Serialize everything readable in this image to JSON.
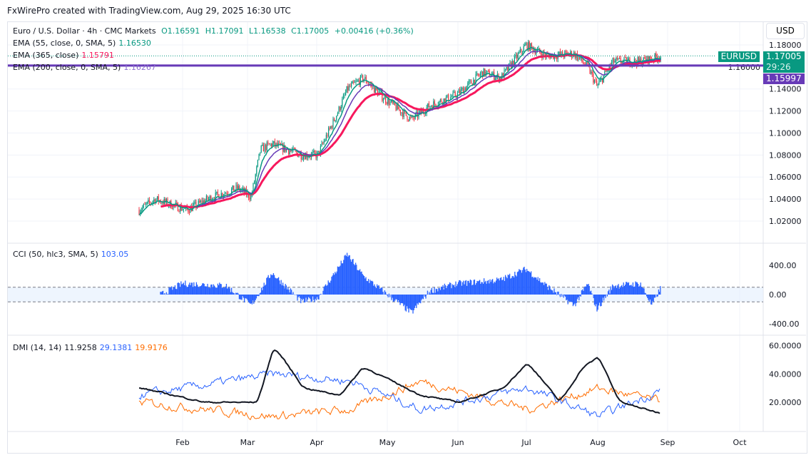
{
  "credit": "FxWirePro created with TradingView.com, Aug 29, 2025 16:30 UTC",
  "legend": {
    "symbol": "Euro / U.S. Dollar · 4h · CMC Markets",
    "o": "O1.16591",
    "h": "H1.17091",
    "l": "L1.16538",
    "c": "C1.17005",
    "chg": "+0.00416 (+0.36%)",
    "ema55": "EMA (55, close, 0, SMA, 5)",
    "ema55_val": "1.16530",
    "ema365": "EMA (365, close)",
    "ema365_val": "1.15791",
    "ema200": "EMA (200, close, 0, SMA, 5)",
    "ema200_val": "1.16267"
  },
  "cci_legend": {
    "label": "CCI (50, hlc3, SMA, 5)",
    "val": "103.05"
  },
  "dmi_legend": {
    "label": "DMI (14, 14)",
    "adx": "11.9258",
    "plus": "29.1381",
    "minus": "19.9176"
  },
  "currency_button": "USD",
  "tags": {
    "symbol": "EURUSD",
    "price": "1.17005",
    "countdown": "29:26",
    "hline": "1.15997"
  },
  "colors": {
    "up": "#089981",
    "down": "#f23645",
    "ema55": "#089981",
    "ema200": "#673ab7",
    "ema365": "#f7185d",
    "cci": "#2962ff",
    "adx": "#131722",
    "plus": "#2962ff",
    "minus": "#ff6d00",
    "hline": "#673ab7"
  },
  "chart_data": [
    {
      "type": "candlestick",
      "title": "Euro / U.S. Dollar · 4h · CMC Markets",
      "price_ticks": [
        "1.02000",
        "1.04000",
        "1.06000",
        "1.08000",
        "1.10000",
        "1.12000",
        "1.14000",
        "1.16000",
        "1.18000"
      ],
      "ylim": [
        1.005,
        1.19
      ],
      "horizontal_line": 1.15997,
      "time_ticks": [
        "Feb",
        "Mar",
        "Apr",
        "May",
        "Jun",
        "Jul",
        "Aug",
        "Sep",
        "Oct"
      ],
      "close_approx": [
        [
          "2025-01-13",
          1.03
        ],
        [
          "2025-01-20",
          1.04
        ],
        [
          "2025-01-27",
          1.035
        ],
        [
          "2025-02-03",
          1.03
        ],
        [
          "2025-02-12",
          1.04
        ],
        [
          "2025-02-25",
          1.05
        ],
        [
          "2025-03-03",
          1.042
        ],
        [
          "2025-03-07",
          1.085
        ],
        [
          "2025-03-12",
          1.09
        ],
        [
          "2025-03-25",
          1.08
        ],
        [
          "2025-04-01",
          1.08
        ],
        [
          "2025-04-10",
          1.12
        ],
        [
          "2025-04-14",
          1.14
        ],
        [
          "2025-04-21",
          1.15
        ],
        [
          "2025-04-28",
          1.135
        ],
        [
          "2025-05-12",
          1.112
        ],
        [
          "2025-05-20",
          1.125
        ],
        [
          "2025-06-01",
          1.135
        ],
        [
          "2025-06-12",
          1.155
        ],
        [
          "2025-06-20",
          1.15
        ],
        [
          "2025-07-01",
          1.18
        ],
        [
          "2025-07-10",
          1.17
        ],
        [
          "2025-07-22",
          1.172
        ],
        [
          "2025-07-28",
          1.16
        ],
        [
          "2025-08-01",
          1.142
        ],
        [
          "2025-08-08",
          1.165
        ],
        [
          "2025-08-20",
          1.165
        ],
        [
          "2025-08-29",
          1.17
        ]
      ]
    },
    {
      "type": "histogram",
      "title": "CCI (50, hlc3, SMA, 5)",
      "ticks": [
        "400.00",
        "0.00",
        "-400.00"
      ],
      "bands": [
        100,
        -100
      ],
      "values_approx": [
        [
          "2025-01-13",
          -150
        ],
        [
          "2025-02-01",
          150
        ],
        [
          "2025-02-20",
          120
        ],
        [
          "2025-03-03",
          -150
        ],
        [
          "2025-03-12",
          300
        ],
        [
          "2025-03-25",
          -100
        ],
        [
          "2025-04-01",
          -50
        ],
        [
          "2025-04-14",
          550
        ],
        [
          "2025-04-21",
          250
        ],
        [
          "2025-05-12",
          -250
        ],
        [
          "2025-05-20",
          50
        ],
        [
          "2025-06-01",
          150
        ],
        [
          "2025-06-20",
          200
        ],
        [
          "2025-07-01",
          350
        ],
        [
          "2025-07-10",
          120
        ],
        [
          "2025-07-22",
          -150
        ],
        [
          "2025-07-28",
          150
        ],
        [
          "2025-08-01",
          -200
        ],
        [
          "2025-08-08",
          120
        ],
        [
          "2025-08-20",
          150
        ],
        [
          "2025-08-25",
          -150
        ],
        [
          "2025-08-29",
          103.05
        ]
      ]
    },
    {
      "type": "line",
      "title": "DMI (14, 14)",
      "ticks": [
        "60.0000",
        "40.0000",
        "20.0000"
      ],
      "series": [
        {
          "name": "ADX",
          "values_approx": [
            [
              "2025-01-13",
              30
            ],
            [
              "2025-02-10",
              20
            ],
            [
              "2025-03-05",
              20
            ],
            [
              "2025-03-12",
              60
            ],
            [
              "2025-03-25",
              30
            ],
            [
              "2025-04-10",
              25
            ],
            [
              "2025-04-20",
              45
            ],
            [
              "2025-05-15",
              25
            ],
            [
              "2025-06-01",
              20
            ],
            [
              "2025-06-20",
              30
            ],
            [
              "2025-07-01",
              48
            ],
            [
              "2025-07-15",
              20
            ],
            [
              "2025-07-25",
              45
            ],
            [
              "2025-08-01",
              52
            ],
            [
              "2025-08-10",
              20
            ],
            [
              "2025-08-29",
              11.93
            ]
          ]
        },
        {
          "name": "+DI",
          "values_approx": [
            [
              "2025-01-13",
              25
            ],
            [
              "2025-03-12",
              40
            ],
            [
              "2025-04-15",
              35
            ],
            [
              "2025-05-15",
              15
            ],
            [
              "2025-07-01",
              30
            ],
            [
              "2025-08-01",
              10
            ],
            [
              "2025-08-29",
              29.14
            ]
          ]
        },
        {
          "name": "-DI",
          "values_approx": [
            [
              "2025-01-13",
              20
            ],
            [
              "2025-03-12",
              10
            ],
            [
              "2025-04-15",
              15
            ],
            [
              "2025-05-15",
              35
            ],
            [
              "2025-07-01",
              15
            ],
            [
              "2025-08-01",
              30
            ],
            [
              "2025-08-29",
              19.92
            ]
          ]
        }
      ]
    }
  ]
}
